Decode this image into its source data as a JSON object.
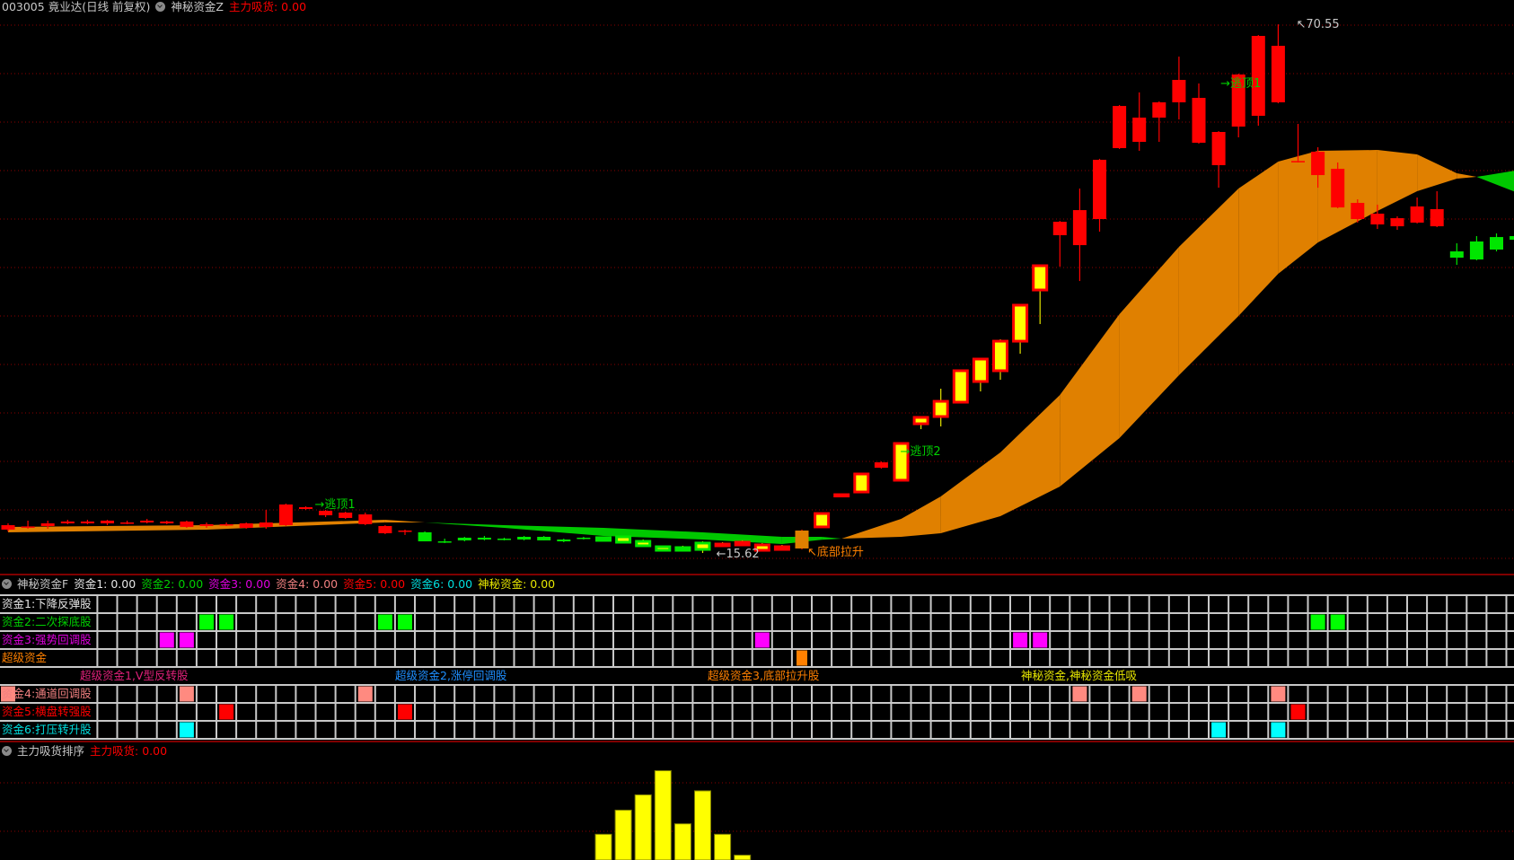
{
  "main_header": {
    "symbol": "003005 竟业达(日线 前复权)",
    "indicator": "神秘资金Z",
    "metric_label": "主力吸货: 0.00"
  },
  "colors": {
    "up": "#ff0000",
    "down": "#00e600",
    "yellow_fill": "#ffff00",
    "band_up": "#e08000",
    "band_down": "#00c800",
    "grid_dotted": "#8b0000",
    "panel_divider": "#800000",
    "cell_grid": "#c8c8c8",
    "bar": "#ffff00"
  },
  "chart_data": [
    {
      "type": "candlestick",
      "title": "",
      "price_high_label": "70.55",
      "price_low_label": "15.62",
      "ylim": [
        15.0,
        72.0
      ],
      "candles_fields": [
        "open",
        "high",
        "low",
        "close",
        "style"
      ],
      "candles": [
        [
          18.05,
          18.7,
          17.86,
          18.51,
          "up"
        ],
        [
          18.33,
          18.98,
          18.14,
          18.38,
          "up"
        ],
        [
          18.42,
          18.98,
          18.14,
          18.7,
          "up"
        ],
        [
          18.7,
          19.07,
          18.61,
          18.89,
          "up"
        ],
        [
          18.7,
          19.07,
          18.61,
          18.89,
          "up"
        ],
        [
          18.7,
          19.07,
          18.51,
          18.98,
          "up"
        ],
        [
          18.7,
          18.98,
          18.61,
          18.79,
          "up"
        ],
        [
          18.79,
          19.16,
          18.7,
          18.98,
          "up"
        ],
        [
          18.7,
          18.98,
          18.61,
          18.89,
          "up"
        ],
        [
          18.33,
          18.98,
          18.23,
          18.89,
          "up"
        ],
        [
          18.42,
          18.79,
          18.23,
          18.61,
          "up"
        ],
        [
          18.51,
          18.79,
          18.42,
          18.61,
          "up"
        ],
        [
          18.23,
          18.79,
          18.14,
          18.7,
          "up"
        ],
        [
          18.33,
          20.1,
          18.14,
          18.79,
          "up"
        ],
        [
          18.51,
          20.75,
          18.42,
          20.66,
          "up"
        ],
        [
          20.19,
          20.47,
          20.1,
          20.38,
          "up"
        ],
        [
          19.54,
          20.1,
          19.35,
          20.0,
          "up"
        ],
        [
          19.26,
          19.91,
          19.16,
          19.82,
          "up"
        ],
        [
          18.61,
          19.82,
          18.51,
          19.63,
          "up"
        ],
        [
          17.67,
          18.51,
          17.58,
          18.42,
          "up"
        ],
        [
          17.86,
          18.05,
          17.49,
          17.95,
          "up"
        ],
        [
          17.77,
          17.86,
          16.83,
          16.83,
          "down"
        ],
        [
          16.83,
          17.11,
          16.65,
          16.74,
          "down"
        ],
        [
          17.21,
          17.3,
          16.83,
          16.93,
          "down"
        ],
        [
          17.21,
          17.39,
          16.93,
          17.02,
          "down"
        ],
        [
          17.11,
          17.21,
          16.93,
          17.02,
          "down"
        ],
        [
          17.3,
          17.39,
          16.93,
          17.02,
          "down"
        ],
        [
          17.3,
          17.39,
          16.93,
          16.93,
          "down"
        ],
        [
          17.02,
          17.11,
          16.74,
          16.83,
          "down"
        ],
        [
          17.21,
          17.3,
          17.02,
          17.11,
          "down"
        ],
        [
          17.21,
          17.3,
          16.83,
          16.93,
          "down-yellow"
        ],
        [
          17.3,
          17.39,
          16.65,
          16.74,
          "down-yellow"
        ],
        [
          16.83,
          17.02,
          16.27,
          16.37,
          "down-yellow"
        ],
        [
          16.27,
          16.37,
          15.81,
          15.9,
          "down-yellow"
        ],
        [
          16.18,
          16.37,
          15.81,
          15.9,
          "down-yellow"
        ],
        [
          16.65,
          16.83,
          15.62,
          15.99,
          "down-yellow"
        ],
        [
          16.37,
          16.74,
          16.27,
          16.55,
          "up-yellow"
        ],
        [
          16.46,
          16.93,
          16.37,
          16.74,
          "up-yellow"
        ],
        [
          15.9,
          16.65,
          15.81,
          16.46,
          "up-yellow"
        ],
        [
          15.99,
          16.46,
          15.9,
          16.27,
          "up-yellow"
        ],
        [
          16.09,
          18.05,
          15.99,
          17.95,
          "orange"
        ],
        [
          18.33,
          19.82,
          18.23,
          19.72,
          "up-yellow"
        ],
        [
          21.59,
          21.78,
          21.59,
          21.68,
          "up-yellow"
        ],
        [
          21.96,
          23.92,
          21.87,
          23.83,
          "up-yellow"
        ],
        [
          24.48,
          25.13,
          24.39,
          25.04,
          "up"
        ],
        [
          23.18,
          27.1,
          23.08,
          27.0,
          "up-yellow"
        ],
        [
          29.05,
          29.8,
          28.49,
          29.71,
          "up-yellow"
        ],
        [
          29.8,
          32.69,
          28.77,
          31.38,
          "up-yellow"
        ],
        [
          31.29,
          34.65,
          31.2,
          34.56,
          "up-yellow"
        ],
        [
          33.44,
          35.87,
          32.41,
          35.77,
          "up-yellow"
        ],
        [
          34.56,
          37.82,
          33.62,
          37.63,
          "up-yellow"
        ],
        [
          37.63,
          41.46,
          36.33,
          41.37,
          "up-yellow"
        ],
        [
          42.95,
          45.56,
          39.41,
          45.47,
          "up-yellow"
        ],
        [
          48.64,
          50.13,
          45.38,
          50.04,
          "up"
        ],
        [
          47.61,
          53.49,
          43.88,
          51.25,
          "up"
        ],
        [
          50.32,
          56.58,
          49.01,
          56.48,
          "up"
        ],
        [
          57.69,
          62.17,
          57.6,
          62.07,
          "up"
        ],
        [
          58.34,
          63.48,
          57.41,
          60.86,
          "up"
        ],
        [
          60.86,
          62.55,
          58.34,
          62.45,
          "up"
        ],
        [
          62.45,
          67.2,
          60.67,
          64.78,
          "up"
        ],
        [
          58.25,
          64.41,
          58.15,
          62.91,
          "up"
        ],
        [
          55.92,
          59.46,
          53.58,
          59.37,
          "up"
        ],
        [
          59.93,
          65.44,
          58.81,
          65.34,
          "up"
        ],
        [
          61.05,
          69.44,
          60.02,
          69.35,
          "up"
        ],
        [
          62.45,
          70.55,
          62.35,
          68.32,
          "up"
        ],
        [
          56.29,
          60.21,
          56.2,
          56.35,
          "up"
        ],
        [
          54.89,
          57.78,
          53.58,
          57.32,
          "up"
        ],
        [
          51.53,
          56.2,
          51.44,
          55.54,
          "up"
        ],
        [
          50.32,
          52.37,
          49.95,
          52.0,
          "up"
        ],
        [
          49.76,
          51.81,
          49.29,
          50.88,
          "up"
        ],
        [
          49.57,
          50.6,
          49.2,
          50.41,
          "up"
        ],
        [
          49.95,
          52.56,
          49.86,
          51.63,
          "up"
        ],
        [
          49.57,
          53.21,
          49.48,
          51.35,
          "up"
        ],
        [
          46.96,
          47.8,
          45.56,
          46.31,
          "down"
        ],
        [
          47.99,
          48.55,
          46.03,
          46.12,
          "down"
        ],
        [
          48.45,
          48.83,
          46.96,
          47.15,
          "down"
        ],
        [
          48.55,
          48.64,
          48.08,
          48.17,
          "down"
        ]
      ],
      "band_fields": [
        "index",
        "line_a",
        "line_b"
      ],
      "band": [
        [
          0,
          18.33,
          17.77
        ],
        [
          10,
          18.51,
          18.05
        ],
        [
          19,
          19.07,
          18.79
        ],
        [
          21,
          18.79,
          18.79
        ],
        [
          25,
          18.23,
          18.51
        ],
        [
          30,
          17.39,
          18.23
        ],
        [
          35,
          17.02,
          17.77
        ],
        [
          39,
          16.55,
          17.3
        ],
        [
          41,
          17.0,
          17.3
        ],
        [
          42,
          17.11,
          17.11
        ],
        [
          45,
          19.16,
          17.3
        ],
        [
          47,
          21.5,
          17.67
        ],
        [
          50,
          26.07,
          19.44
        ],
        [
          53,
          32.04,
          22.52
        ],
        [
          56,
          40.43,
          27.56
        ],
        [
          59,
          47.43,
          34.09
        ],
        [
          62,
          53.49,
          40.25
        ],
        [
          64,
          56.29,
          44.63
        ],
        [
          66,
          57.41,
          47.89
        ],
        [
          69,
          57.5,
          51.16
        ],
        [
          71,
          57.04,
          53.21
        ],
        [
          73,
          55.08,
          54.52
        ],
        [
          74,
          54.7,
          54.7
        ],
        [
          76.5,
          52.7,
          55.55
        ]
      ],
      "annotations": {
        "top1_early": "→逃顶1",
        "top1_late": "→逃顶1",
        "top2": "→逃顶2",
        "bottom_lift": "↖底部拉升",
        "low_mark": "←15.62",
        "high_mark": "↖70.55"
      }
    },
    {
      "type": "bar",
      "title": "",
      "indices": [
        30,
        31,
        32,
        33,
        34,
        35,
        36,
        37
      ],
      "values": [
        32,
        62,
        81,
        111,
        45,
        86,
        32,
        6
      ],
      "ylim": [
        0,
        125
      ]
    }
  ],
  "signal_panel": {
    "indicator": "神秘资金F",
    "values": [
      {
        "label": "资金1: 0.00",
        "color": "#e6e6e6"
      },
      {
        "label": "资金2: 0.00",
        "color": "#00d000"
      },
      {
        "label": "资金3: 0.00",
        "color": "#e000e0"
      },
      {
        "label": "资金4: 0.00",
        "color": "#f08080"
      },
      {
        "label": "资金5: 0.00",
        "color": "#ff0000"
      },
      {
        "label": "资金6: 0.00",
        "color": "#00e0e0"
      },
      {
        "label": "神秘资金: 0.00",
        "color": "#e6e600"
      }
    ],
    "grid_top": [
      {
        "label": "资金1:下降反弹股",
        "color": "#e6e6e6",
        "cell_color": "#ffffff",
        "cells": []
      },
      {
        "label": "资金2:二次探底股",
        "color": "#00d000",
        "cell_color": "#00ff00",
        "cells": [
          10,
          11,
          19,
          20,
          66,
          67
        ]
      },
      {
        "label": "资金3:强势回调股",
        "color": "#e000e0",
        "cell_color": "#ff00ff",
        "cells": [
          8,
          9,
          38,
          51,
          52
        ]
      },
      {
        "label": "超级资金",
        "color": "#ff8000",
        "cell_color": "#ff8000",
        "cells": [
          40
        ]
      }
    ],
    "section_labels": [
      {
        "label": "超级资金1,V型反转股",
        "color": "#e0207a"
      },
      {
        "label": "超级资金2,涨停回调股",
        "color": "#1e8fff"
      },
      {
        "label": "超级资金3,底部拉升股",
        "color": "#ff8000"
      },
      {
        "label": "神秘资金,神秘资金低吸",
        "color": "#e6e600"
      }
    ],
    "grid_bottom": [
      {
        "label": "资金4:通道回调股",
        "color": "#f08080",
        "cell_color": "#ff8a80",
        "cells": [
          0,
          9,
          18,
          54,
          57,
          64
        ]
      },
      {
        "label": "资金5:横盘转强股",
        "color": "#ff0000",
        "cell_color": "#ff0000",
        "cells": [
          11,
          20,
          65
        ]
      },
      {
        "label": "资金6:打压转升股",
        "color": "#00e0e0",
        "cell_color": "#00ffff",
        "cells": [
          9,
          61,
          64
        ]
      }
    ]
  },
  "volume_panel": {
    "indicator": "主力吸货排序",
    "metric_label": "主力吸货: 0.00"
  }
}
